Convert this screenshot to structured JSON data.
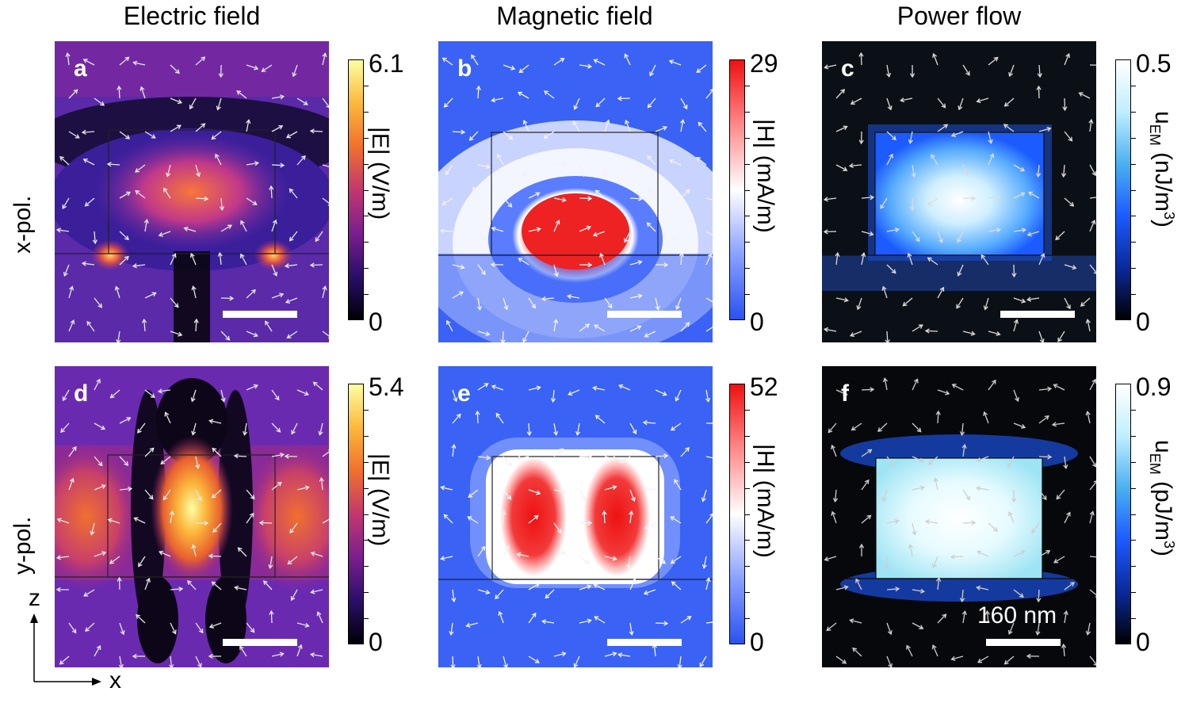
{
  "columns": {
    "electric": "Electric field",
    "magnetic": "Magnetic field",
    "power": "Power flow"
  },
  "rows": {
    "x": "x-pol.",
    "y": "y-pol."
  },
  "panels": {
    "a": {
      "label": "a",
      "cmax": "6.1",
      "cmin": "0",
      "unit": "|E| (V/m)"
    },
    "b": {
      "label": "b",
      "cmax": "29",
      "cmin": "0",
      "unit": "|H| (mA/m)"
    },
    "c": {
      "label": "c",
      "cmax": "0.5",
      "cmin": "0",
      "unit_main": "u",
      "unit_sub": "EM",
      "unit_rest": " (nJ/m",
      "unit_sup": "3",
      "unit_end": ")"
    },
    "d": {
      "label": "d",
      "cmax": "5.4",
      "cmin": "0",
      "unit": "|E| (V/m)"
    },
    "e": {
      "label": "e",
      "cmax": "52",
      "cmin": "0",
      "unit": "|H| (mA/m)"
    },
    "f": {
      "label": "f",
      "cmax": "0.9",
      "cmin": "0",
      "unit_main": "u",
      "unit_sub": "EM",
      "unit_rest": " (pJ/m",
      "unit_sup": "3",
      "unit_end": ")"
    }
  },
  "scale_bar": "160 nm",
  "axes": {
    "z": "z",
    "x": "x"
  },
  "colors": {
    "inferno_low": "#000004",
    "inferno_mid": "#7a1f8e",
    "inferno_high": "#fcffa4",
    "bwr_low": "#2a52f0",
    "bwr_mid": "#ffffff",
    "bwr_high": "#ee1111",
    "ice_low": "#000000",
    "ice_mid": "#1b5bff",
    "ice_high": "#ffffff"
  }
}
